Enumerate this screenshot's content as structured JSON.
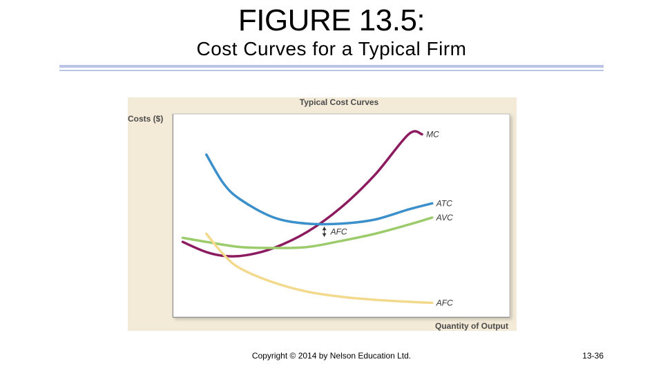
{
  "slide": {
    "title": "FIGURE 13.5:",
    "subtitle": "Cost Curves for a Typical Firm",
    "copyright": "Copyright © 2014 by Nelson Education Ltd.",
    "page_number": "13-36"
  },
  "colors": {
    "rule": "#b9c4e6",
    "panel_background": "#f3ead8",
    "plot_background": "#ffffff",
    "mc": "#8b1a5e",
    "atc": "#3b8fca",
    "avc": "#9ccb6c",
    "afc": "#f3d98b"
  },
  "chart_data": {
    "type": "line",
    "title": "Typical Cost Curves",
    "xlabel": "Quantity of Output",
    "ylabel": "Costs ($)",
    "xlim": [
      0,
      10
    ],
    "ylim": [
      0,
      10
    ],
    "grid": false,
    "axis_ticks": false,
    "legend": "curve labels at right end of each line",
    "series": [
      {
        "name": "MC",
        "color": "#8b1a5e",
        "x": [
          0.3,
          1.0,
          1.6,
          2.2,
          3.0,
          4.0,
          5.0,
          6.0,
          7.0,
          7.4
        ],
        "y": [
          3.7,
          3.2,
          3.0,
          3.05,
          3.4,
          4.2,
          5.4,
          7.0,
          9.0,
          9.0
        ]
      },
      {
        "name": "ATC",
        "color": "#3b8fca",
        "x": [
          1.0,
          1.5,
          2.0,
          3.0,
          4.0,
          5.0,
          6.0,
          7.0,
          7.7
        ],
        "y": [
          8.0,
          6.6,
          5.8,
          4.9,
          4.6,
          4.6,
          4.8,
          5.3,
          5.6
        ]
      },
      {
        "name": "AVC",
        "color": "#9ccb6c",
        "x": [
          0.3,
          1.0,
          2.0,
          3.0,
          4.0,
          5.0,
          6.0,
          7.0,
          7.7
        ],
        "y": [
          3.9,
          3.7,
          3.45,
          3.4,
          3.45,
          3.75,
          4.1,
          4.55,
          4.9
        ]
      },
      {
        "name": "AFC",
        "color": "#f3d98b",
        "x": [
          1.0,
          1.5,
          2.0,
          3.0,
          4.0,
          5.0,
          6.0,
          7.0,
          7.7
        ],
        "y": [
          4.1,
          3.1,
          2.4,
          1.7,
          1.25,
          1.0,
          0.85,
          0.75,
          0.7
        ]
      }
    ],
    "annotations": [
      {
        "text": "AFC",
        "type": "double-arrow",
        "x": 4.5,
        "y_from": 3.85,
        "y_to": 4.55
      }
    ]
  }
}
